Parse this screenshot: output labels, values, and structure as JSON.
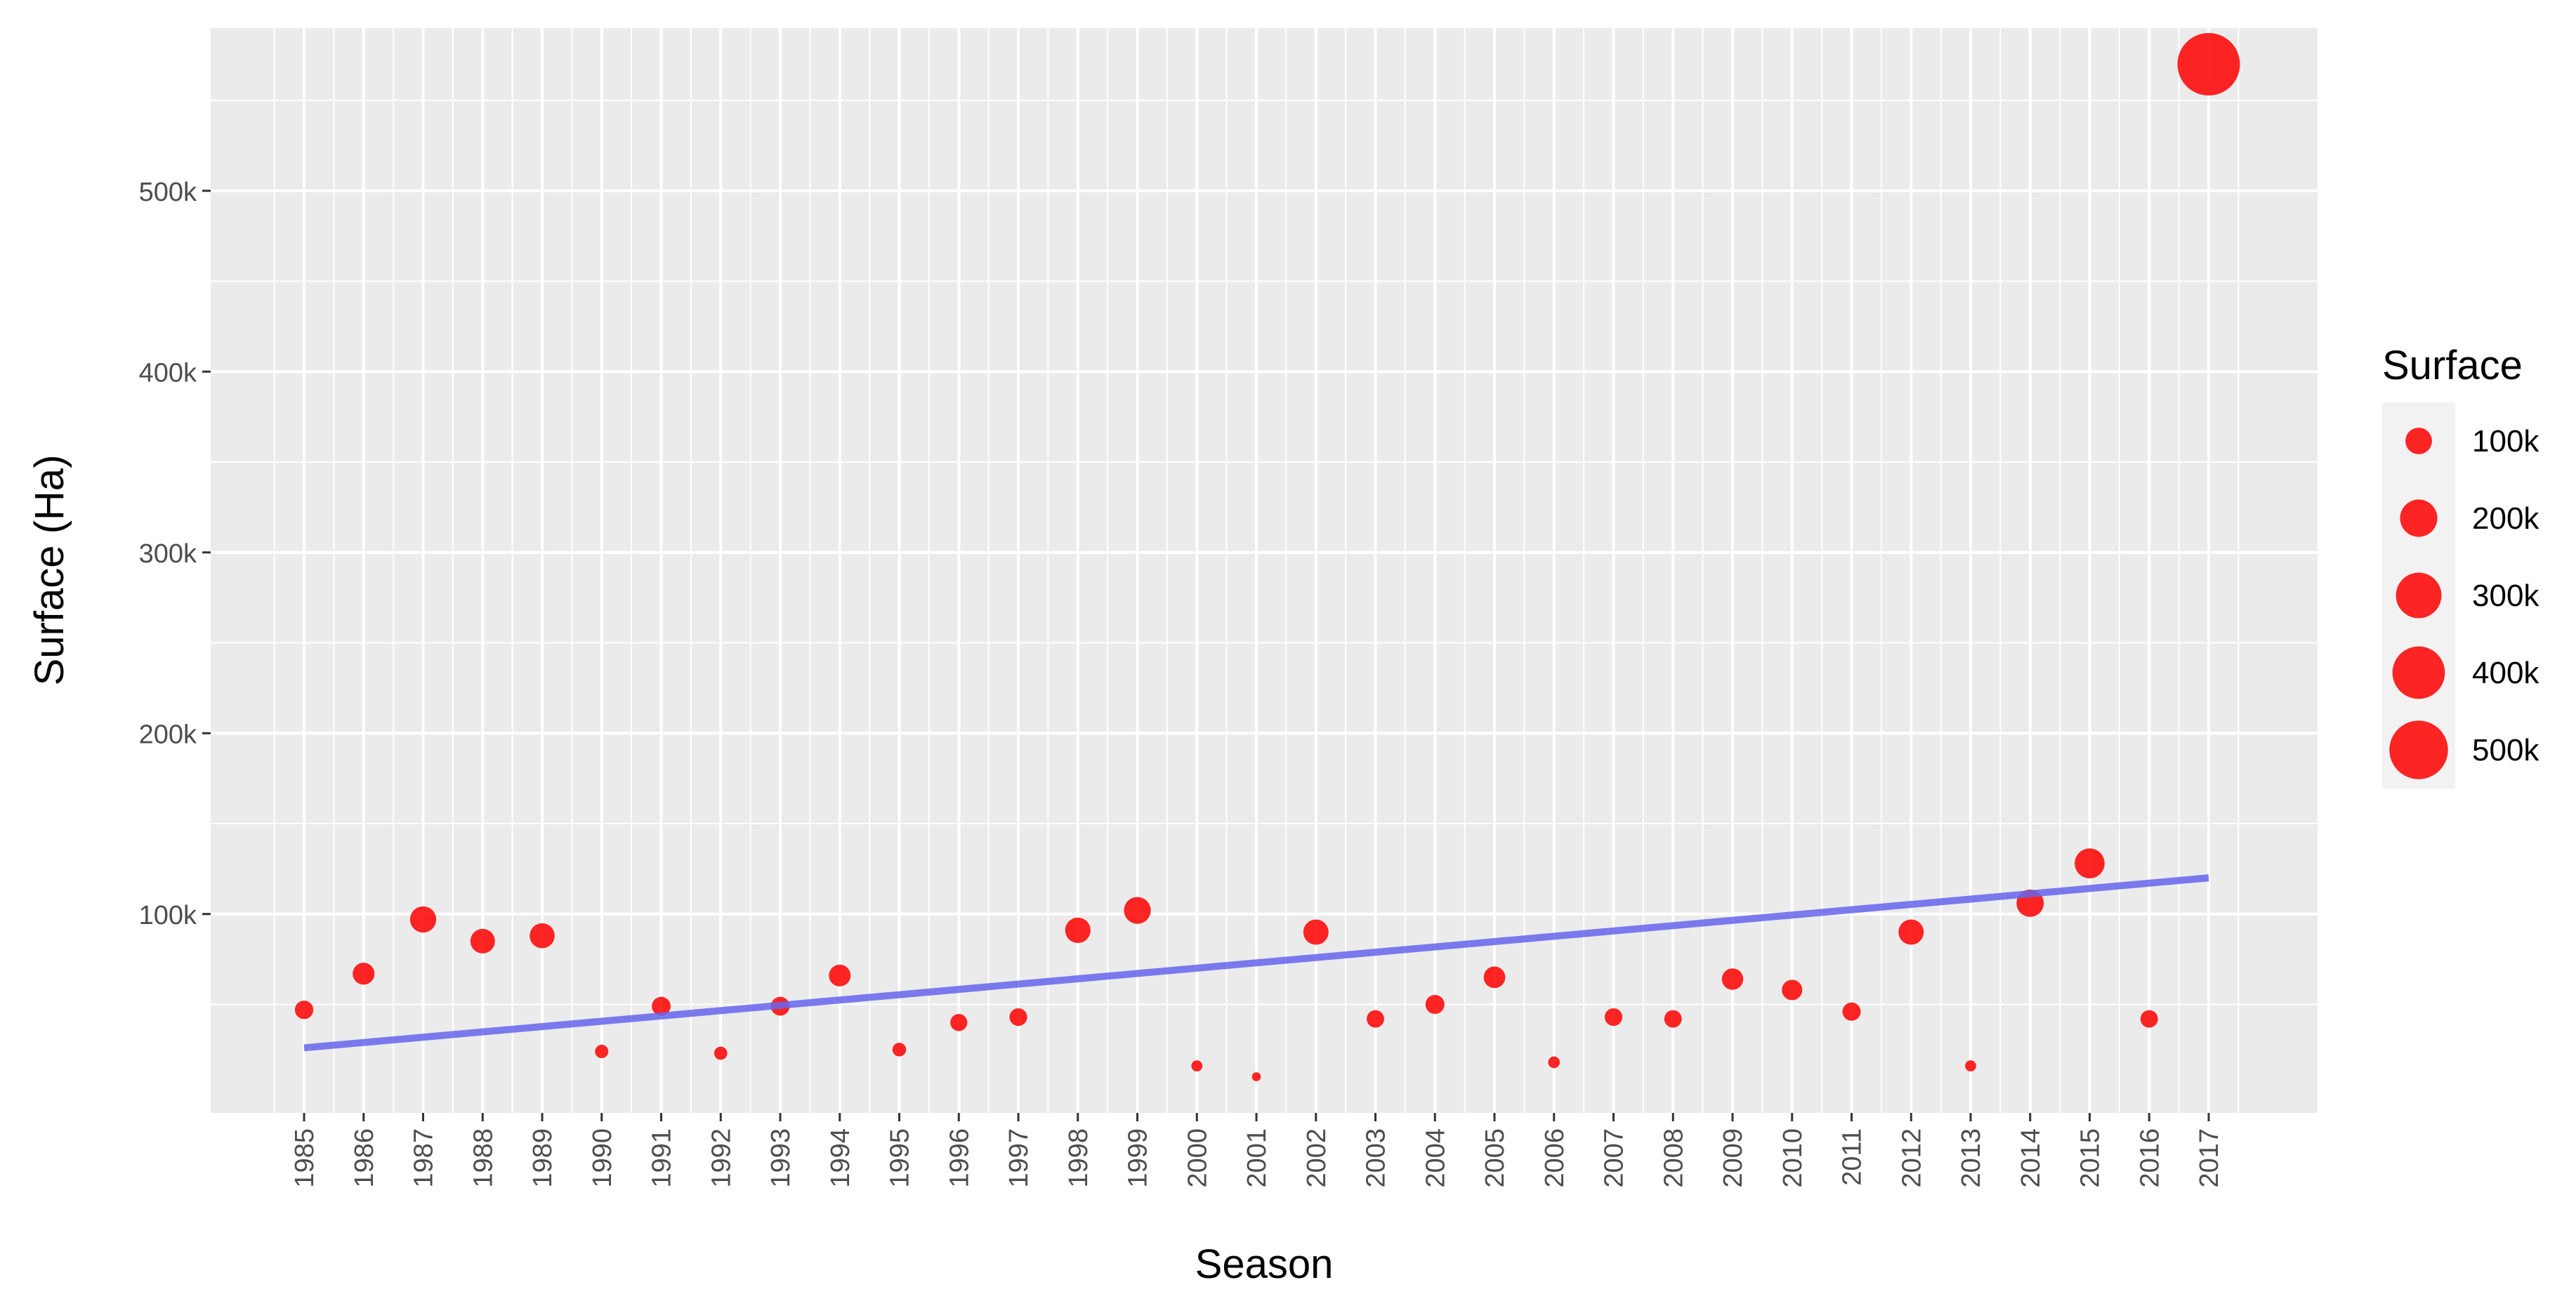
{
  "chart_data": {
    "type": "scatter",
    "xlabel": "Season",
    "ylabel": "Surface (Ha)",
    "x_categories": [
      "1985",
      "1986",
      "1987",
      "1988",
      "1989",
      "1990",
      "1991",
      "1992",
      "1993",
      "1994",
      "1995",
      "1996",
      "1997",
      "1998",
      "1999",
      "2000",
      "2001",
      "2002",
      "2003",
      "2004",
      "2005",
      "2006",
      "2007",
      "2008",
      "2009",
      "2010",
      "2011",
      "2012",
      "2013",
      "2014",
      "2015",
      "2016",
      "2017"
    ],
    "y_ticks": [
      100000,
      200000,
      300000,
      400000,
      500000
    ],
    "y_tick_labels": [
      "100k",
      "200k",
      "300k",
      "400k",
      "500k"
    ],
    "ylim": [
      -10000,
      590000
    ],
    "points": [
      {
        "x": "1985",
        "y": 47000
      },
      {
        "x": "1986",
        "y": 67000
      },
      {
        "x": "1987",
        "y": 97000
      },
      {
        "x": "1988",
        "y": 85000
      },
      {
        "x": "1989",
        "y": 88000
      },
      {
        "x": "1990",
        "y": 24000
      },
      {
        "x": "1991",
        "y": 49000
      },
      {
        "x": "1992",
        "y": 23000
      },
      {
        "x": "1993",
        "y": 49000
      },
      {
        "x": "1994",
        "y": 66000
      },
      {
        "x": "1995",
        "y": 25000
      },
      {
        "x": "1996",
        "y": 40000
      },
      {
        "x": "1997",
        "y": 43000
      },
      {
        "x": "1998",
        "y": 91000
      },
      {
        "x": "1999",
        "y": 102000
      },
      {
        "x": "2000",
        "y": 16000
      },
      {
        "x": "2001",
        "y": 10000
      },
      {
        "x": "2002",
        "y": 90000
      },
      {
        "x": "2003",
        "y": 42000
      },
      {
        "x": "2004",
        "y": 50000
      },
      {
        "x": "2005",
        "y": 65000
      },
      {
        "x": "2006",
        "y": 18000
      },
      {
        "x": "2007",
        "y": 43000
      },
      {
        "x": "2008",
        "y": 42000
      },
      {
        "x": "2009",
        "y": 64000
      },
      {
        "x": "2010",
        "y": 58000
      },
      {
        "x": "2011",
        "y": 46000
      },
      {
        "x": "2012",
        "y": 90000
      },
      {
        "x": "2013",
        "y": 16000
      },
      {
        "x": "2014",
        "y": 106000
      },
      {
        "x": "2015",
        "y": 128000
      },
      {
        "x": "2016",
        "y": 42000
      },
      {
        "x": "2017",
        "y": 570000
      }
    ],
    "trend_line": {
      "x_start": "1985",
      "y_start": 26000,
      "x_end": "2017",
      "y_end": 120000,
      "color": "#6666ee"
    },
    "point_color": "#ff0000",
    "legend": {
      "title": "Surface",
      "position": "right",
      "entries": [
        {
          "label": "100k",
          "value": 100000
        },
        {
          "label": "200k",
          "value": 200000
        },
        {
          "label": "300k",
          "value": 300000
        },
        {
          "label": "400k",
          "value": 400000
        },
        {
          "label": "500k",
          "value": 500000
        }
      ]
    },
    "grid": true
  }
}
